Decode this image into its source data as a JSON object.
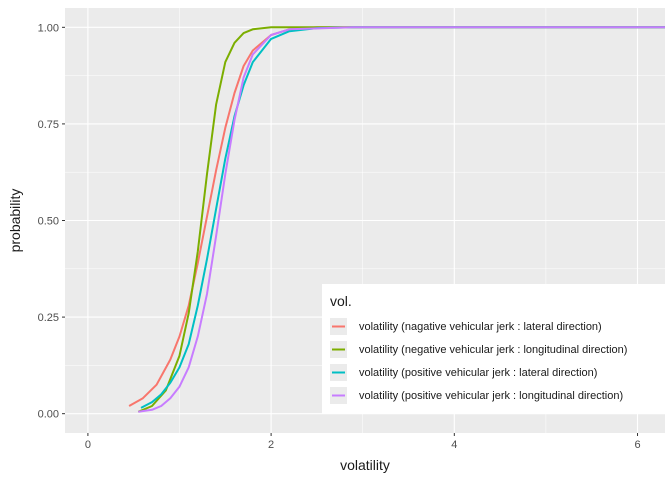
{
  "chart_data": {
    "type": "line",
    "title": "",
    "xlabel": "volatility",
    "ylabel": "probability",
    "xlim": [
      -0.25,
      6.3
    ],
    "ylim": [
      -0.05,
      1.05
    ],
    "x_ticks": [
      0,
      2,
      4,
      6
    ],
    "x_tick_labels": [
      "0",
      "2",
      "4",
      "6"
    ],
    "y_ticks": [
      0,
      0.25,
      0.5,
      0.75,
      1.0
    ],
    "y_tick_labels": [
      "0.00",
      "0.25",
      "0.50",
      "0.75",
      "1.00"
    ],
    "grid": true,
    "legend": {
      "title": "vol.",
      "position": "bottom-right",
      "entries": [
        "volatility (nagative vehicular jerk : lateral direction)",
        "volatility (negative vehicular jerk : longitudinal direction)",
        "volatility (positive vehicular jerk : lateral direction)",
        "volatility (positive vehicular jerk : longitudinal direction)"
      ]
    },
    "colors": {
      "panel_bg": "#EBEBEB",
      "grid_major": "#FFFFFF",
      "series": [
        "#F8766D",
        "#7CAE00",
        "#00BFC4",
        "#C77CFF"
      ]
    },
    "series": [
      {
        "name": "volatility (nagative vehicular jerk : lateral direction)",
        "color": "#F8766D",
        "points": [
          [
            0.45,
            0.02
          ],
          [
            0.6,
            0.04
          ],
          [
            0.75,
            0.075
          ],
          [
            0.9,
            0.14
          ],
          [
            1.0,
            0.2
          ],
          [
            1.1,
            0.28
          ],
          [
            1.2,
            0.39
          ],
          [
            1.3,
            0.51
          ],
          [
            1.4,
            0.63
          ],
          [
            1.5,
            0.74
          ],
          [
            1.6,
            0.83
          ],
          [
            1.7,
            0.9
          ],
          [
            1.8,
            0.94
          ],
          [
            2.0,
            0.98
          ],
          [
            2.2,
            0.995
          ],
          [
            2.5,
            1.0
          ],
          [
            6.3,
            1.0
          ]
        ]
      },
      {
        "name": "volatility (negative vehicular jerk : longitudinal direction)",
        "color": "#7CAE00",
        "points": [
          [
            0.55,
            0.005
          ],
          [
            0.7,
            0.02
          ],
          [
            0.85,
            0.06
          ],
          [
            1.0,
            0.15
          ],
          [
            1.1,
            0.26
          ],
          [
            1.2,
            0.42
          ],
          [
            1.3,
            0.62
          ],
          [
            1.4,
            0.8
          ],
          [
            1.5,
            0.91
          ],
          [
            1.6,
            0.96
          ],
          [
            1.7,
            0.985
          ],
          [
            1.8,
            0.995
          ],
          [
            2.0,
            1.0
          ],
          [
            6.3,
            1.0
          ]
        ]
      },
      {
        "name": "volatility (positive vehicular jerk : lateral direction)",
        "color": "#00BFC4",
        "points": [
          [
            0.58,
            0.015
          ],
          [
            0.7,
            0.03
          ],
          [
            0.8,
            0.05
          ],
          [
            0.9,
            0.08
          ],
          [
            1.0,
            0.12
          ],
          [
            1.1,
            0.18
          ],
          [
            1.2,
            0.28
          ],
          [
            1.3,
            0.4
          ],
          [
            1.4,
            0.53
          ],
          [
            1.5,
            0.66
          ],
          [
            1.6,
            0.77
          ],
          [
            1.7,
            0.85
          ],
          [
            1.8,
            0.91
          ],
          [
            2.0,
            0.97
          ],
          [
            2.2,
            0.99
          ],
          [
            2.5,
            0.998
          ],
          [
            2.9,
            1.0
          ],
          [
            6.3,
            1.0
          ]
        ]
      },
      {
        "name": "volatility (positive vehicular jerk : longitudinal direction)",
        "color": "#C77CFF",
        "points": [
          [
            0.55,
            0.005
          ],
          [
            0.7,
            0.01
          ],
          [
            0.8,
            0.02
          ],
          [
            0.9,
            0.04
          ],
          [
            1.0,
            0.07
          ],
          [
            1.1,
            0.12
          ],
          [
            1.2,
            0.2
          ],
          [
            1.3,
            0.31
          ],
          [
            1.4,
            0.46
          ],
          [
            1.5,
            0.62
          ],
          [
            1.6,
            0.76
          ],
          [
            1.7,
            0.87
          ],
          [
            1.8,
            0.93
          ],
          [
            2.0,
            0.98
          ],
          [
            2.2,
            0.995
          ],
          [
            2.9,
            1.0
          ],
          [
            6.3,
            1.0
          ]
        ]
      }
    ]
  }
}
